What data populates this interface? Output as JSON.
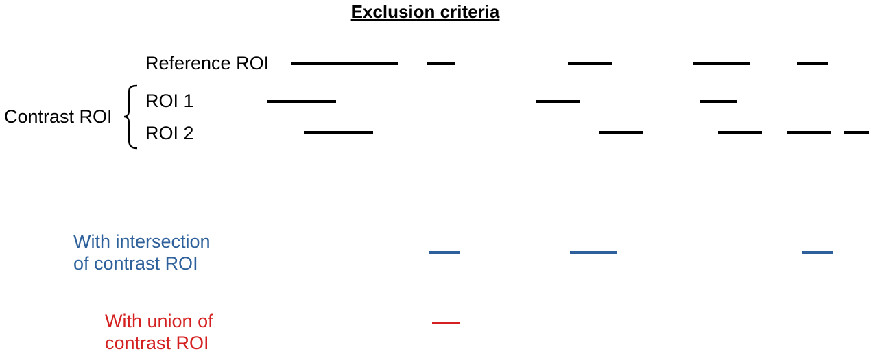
{
  "title": "Exclusion criteria",
  "labels": {
    "reference": "Reference ROI",
    "roi1": "ROI 1",
    "roi2": "ROI 2",
    "contrast": "Contrast ROI",
    "intersection": [
      "With intersection",
      "of contrast ROI"
    ],
    "union": [
      "With union of",
      "contrast ROI"
    ]
  },
  "colors": {
    "default": "#000000",
    "intersection": "#2e619b",
    "union": "#d42020"
  },
  "icons": {
    "brace": "curly-brace-icon"
  }
}
